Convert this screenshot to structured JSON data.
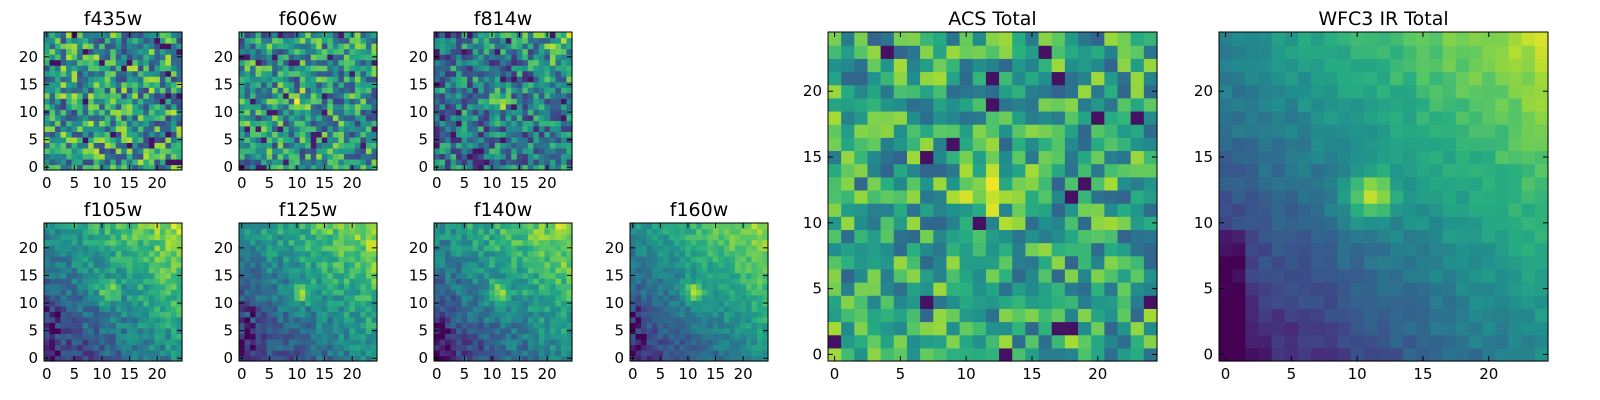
{
  "figure": {
    "description": ""
  },
  "chart_data": [
    {
      "type": "heatmap",
      "title": "f435w",
      "xlim": [
        0,
        24
      ],
      "ylim": [
        0,
        24
      ],
      "x_ticks": [
        0,
        5,
        10,
        15,
        20
      ],
      "y_ticks": [
        0,
        5,
        10,
        15,
        20
      ],
      "grid": false,
      "colormap": "viridis",
      "z": "random noise, mostly green/yellow, scattered dark pixels",
      "bright_spot": null
    },
    {
      "type": "heatmap",
      "title": "f606w",
      "xlim": [
        0,
        24
      ],
      "ylim": [
        0,
        24
      ],
      "x_ticks": [
        0,
        5,
        10,
        15,
        20
      ],
      "y_ticks": [
        0,
        5,
        10,
        15,
        20
      ],
      "grid": false,
      "colormap": "viridis",
      "z": "noisy field with mild bright spot near (11,12)",
      "bright_spot": [
        11,
        12
      ]
    },
    {
      "type": "heatmap",
      "title": "f814w",
      "xlim": [
        0,
        24
      ],
      "ylim": [
        0,
        24
      ],
      "x_ticks": [
        0,
        5,
        10,
        15,
        20
      ],
      "y_ticks": [
        0,
        5,
        10,
        15,
        20
      ],
      "grid": false,
      "colormap": "viridis",
      "z": "noisy field, bright spot near (11,12), bright top-right corner",
      "bright_spot": [
        11,
        12
      ]
    },
    {
      "type": "heatmap",
      "title": "f105w",
      "xlim": [
        0,
        24
      ],
      "ylim": [
        0,
        24
      ],
      "x_ticks": [
        0,
        5,
        10,
        15,
        20
      ],
      "y_ticks": [
        0,
        5,
        10,
        15,
        20
      ],
      "grid": false,
      "colormap": "viridis",
      "z": "gradient dark lower-left to bright upper-right, bright spot near (11,12)",
      "bright_spot": [
        11,
        12
      ]
    },
    {
      "type": "heatmap",
      "title": "f125w",
      "xlim": [
        0,
        24
      ],
      "ylim": [
        0,
        24
      ],
      "x_ticks": [
        0,
        5,
        10,
        15,
        20
      ],
      "y_ticks": [
        0,
        5,
        10,
        15,
        20
      ],
      "grid": false,
      "colormap": "viridis",
      "z": "gradient dark lower-left to bright upper-right, bright spot near (11,12)",
      "bright_spot": [
        11,
        12
      ]
    },
    {
      "type": "heatmap",
      "title": "f140w",
      "xlim": [
        0,
        24
      ],
      "ylim": [
        0,
        24
      ],
      "x_ticks": [
        0,
        5,
        10,
        15,
        20
      ],
      "y_ticks": [
        0,
        5,
        10,
        15,
        20
      ],
      "grid": false,
      "colormap": "viridis",
      "z": "gradient dark lower-left to bright upper-right, bright spot near (11,12)",
      "bright_spot": [
        11,
        12
      ]
    },
    {
      "type": "heatmap",
      "title": "f160w",
      "xlim": [
        0,
        24
      ],
      "ylim": [
        0,
        24
      ],
      "x_ticks": [
        0,
        5,
        10,
        15,
        20
      ],
      "y_ticks": [
        0,
        5,
        10,
        15,
        20
      ],
      "grid": false,
      "colormap": "viridis",
      "z": "gradient dark lower-left to bright upper-right, bright spot near (11,12)",
      "bright_spot": [
        11,
        12
      ]
    },
    {
      "type": "heatmap",
      "title": "ACS Total",
      "xlim": [
        0,
        24
      ],
      "ylim": [
        0,
        24
      ],
      "x_ticks": [
        0,
        5,
        10,
        15,
        20
      ],
      "y_ticks": [
        0,
        5,
        10,
        15,
        20
      ],
      "grid": false,
      "colormap": "viridis",
      "z": "noisy green/yellow field with bright blob near (11,12) and scattered dark pixels",
      "bright_spot": [
        11,
        12
      ]
    },
    {
      "type": "heatmap",
      "title": "WFC3 IR Total",
      "xlim": [
        0,
        24
      ],
      "ylim": [
        0,
        24
      ],
      "x_ticks": [
        0,
        5,
        10,
        15,
        20
      ],
      "y_ticks": [
        0,
        5,
        10,
        15,
        20
      ],
      "grid": false,
      "colormap": "viridis",
      "z": "smooth gradient from dark purple lower-left to yellow upper-right, bright blob near (11,12)",
      "bright_spot": [
        11,
        12
      ]
    }
  ]
}
